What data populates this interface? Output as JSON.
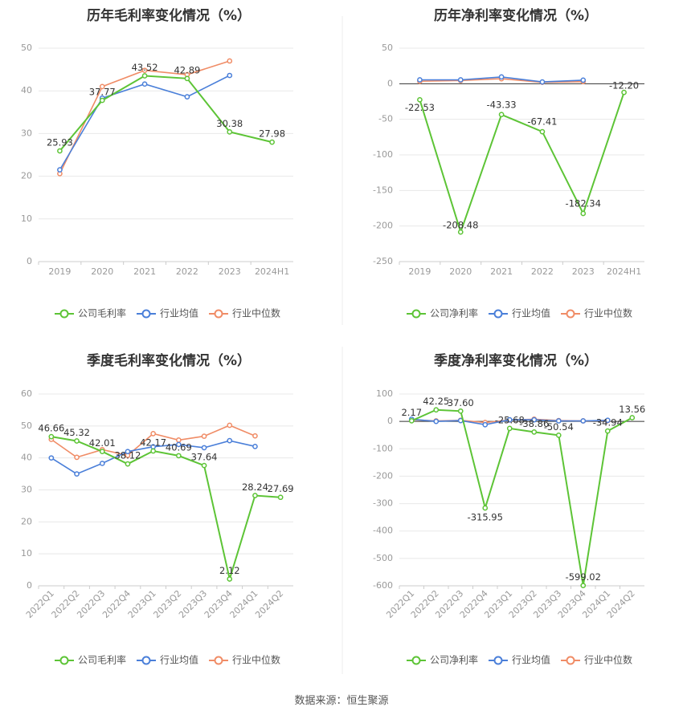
{
  "source": "数据来源：恒生聚源",
  "legend": {
    "company_gross": "公司毛利率",
    "company_net": "公司净利率",
    "industry_avg": "行业均值",
    "industry_median": "行业中位数"
  },
  "colors": {
    "company": "#5dc436",
    "industry_avg": "#4a7fd9",
    "industry_median": "#f08c66"
  },
  "chart_data": [
    {
      "type": "line",
      "title": "历年毛利率变化情况（%）",
      "categories": [
        "2019",
        "2020",
        "2021",
        "2022",
        "2023",
        "2024H1"
      ],
      "ylim": [
        0,
        50
      ],
      "yticks": [
        0,
        10,
        20,
        30,
        40,
        50
      ],
      "legend_position": "bottom",
      "series": [
        {
          "name": "公司毛利率",
          "values": [
            25.93,
            37.77,
            43.52,
            42.89,
            30.38,
            27.98
          ],
          "labels": [
            "25.93",
            "37.77",
            "43.52",
            "42.89",
            "30.38",
            "27.98"
          ]
        },
        {
          "name": "行业均值",
          "values": [
            21.5,
            38.3,
            41.6,
            38.6,
            43.6,
            null
          ]
        },
        {
          "name": "行业中位数",
          "values": [
            20.6,
            41.0,
            44.8,
            43.8,
            47.0,
            null
          ]
        }
      ]
    },
    {
      "type": "line",
      "title": "历年净利率变化情况（%）",
      "categories": [
        "2019",
        "2020",
        "2021",
        "2022",
        "2023",
        "2024H1"
      ],
      "ylim": [
        -250,
        50
      ],
      "yticks": [
        -250,
        -200,
        -150,
        -100,
        -50,
        0,
        50
      ],
      "legend_position": "bottom",
      "series": [
        {
          "name": "公司净利率",
          "values": [
            -22.53,
            -208.48,
            -43.33,
            -67.41,
            -182.34,
            -12.2
          ],
          "labels": [
            "-22.53",
            "-208.48",
            "-43.33",
            "-67.41",
            "-182.34",
            "-12.20"
          ]
        },
        {
          "name": "行业均值",
          "values": [
            5.5,
            5.5,
            9.5,
            2.5,
            5.0,
            null
          ]
        },
        {
          "name": "行业中位数",
          "values": [
            3.5,
            4.5,
            7.0,
            2.0,
            3.0,
            null
          ]
        }
      ]
    },
    {
      "type": "line",
      "title": "季度毛利率变化情况（%）",
      "categories": [
        "2022Q1",
        "2022Q2",
        "2022Q3",
        "2022Q4",
        "2023Q1",
        "2023Q2",
        "2023Q3",
        "2023Q4",
        "2024Q1",
        "2024Q2"
      ],
      "ylim": [
        0,
        60
      ],
      "yticks": [
        0,
        10,
        20,
        30,
        40,
        50,
        60
      ],
      "legend_position": "bottom",
      "series": [
        {
          "name": "公司毛利率",
          "values": [
            46.66,
            45.32,
            42.01,
            38.12,
            42.17,
            40.69,
            37.64,
            2.12,
            28.24,
            27.69
          ],
          "labels": [
            "46.66",
            "45.32",
            "42.01",
            "38.12",
            "42.17",
            "40.69",
            "37.64",
            "2.12",
            "28.24",
            "27.69"
          ]
        },
        {
          "name": "行业均值",
          "values": [
            40.0,
            35.0,
            38.3,
            42.0,
            43.5,
            44.2,
            43.2,
            45.4,
            43.6,
            null
          ]
        },
        {
          "name": "行业中位数",
          "values": [
            45.8,
            40.2,
            42.6,
            40.8,
            47.6,
            45.6,
            46.8,
            50.2,
            46.9,
            null
          ]
        }
      ]
    },
    {
      "type": "line",
      "title": "季度净利率变化情况（%）",
      "categories": [
        "2022Q1",
        "2022Q2",
        "2022Q3",
        "2022Q4",
        "2023Q1",
        "2023Q2",
        "2023Q3",
        "2023Q4",
        "2024Q1",
        "2024Q2"
      ],
      "ylim": [
        -600,
        100
      ],
      "yticks": [
        -600,
        -500,
        -400,
        -300,
        -200,
        -100,
        0,
        100
      ],
      "legend_position": "bottom",
      "series": [
        {
          "name": "公司净利率",
          "values": [
            2.17,
            42.25,
            37.6,
            -315.95,
            -25.68,
            -38.86,
            -50.54,
            -599.02,
            -34.94,
            13.56
          ],
          "labels": [
            "2.17",
            "42.25",
            "37.60",
            "-315.95",
            "-25.68",
            "-38.86",
            "-50.54",
            "-599.02",
            "-34.94",
            "13.56"
          ]
        },
        {
          "name": "行业均值",
          "values": [
            8,
            0,
            3,
            -12,
            6,
            6,
            2,
            2,
            4,
            null
          ]
        },
        {
          "name": "行业中位数",
          "values": [
            6,
            2,
            4,
            -4,
            5,
            8,
            3,
            2,
            3,
            null
          ]
        }
      ]
    }
  ]
}
